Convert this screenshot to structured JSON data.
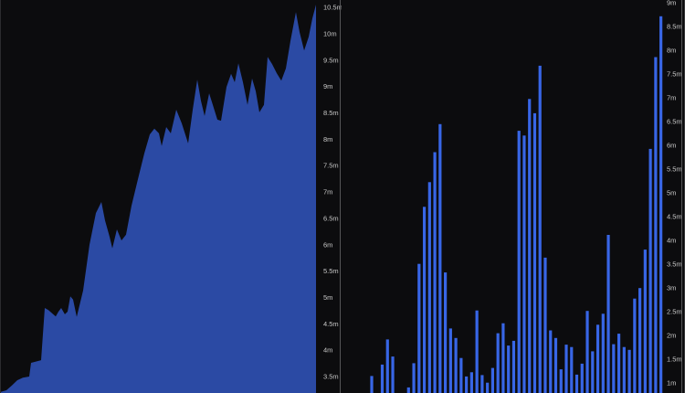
{
  "page": {
    "background": "#0c0c0e",
    "panel_border_color": "#565658"
  },
  "chart_data": [
    {
      "type": "area",
      "name": "area-chart",
      "title": "",
      "xlabel": "",
      "ylabel": "",
      "unit": "m",
      "legend": "none",
      "grid": "off",
      "y_axis_side": "right",
      "y_ticks": [
        {
          "label": "10.5m",
          "value": 10.5
        },
        {
          "label": "10m",
          "value": 10.0
        },
        {
          "label": "9.5m",
          "value": 9.5
        },
        {
          "label": "9m",
          "value": 9.0
        },
        {
          "label": "8.5m",
          "value": 8.5
        },
        {
          "label": "8m",
          "value": 8.0
        },
        {
          "label": "7.5m",
          "value": 7.5
        },
        {
          "label": "7m",
          "value": 7.0
        },
        {
          "label": "6.5m",
          "value": 6.5
        },
        {
          "label": "6m",
          "value": 6.0
        },
        {
          "label": "5.5m",
          "value": 5.5
        },
        {
          "label": "5m",
          "value": 5.0
        },
        {
          "label": "4.5m",
          "value": 4.5
        },
        {
          "label": "4m",
          "value": 4.0
        },
        {
          "label": "3.5m",
          "value": 3.5
        }
      ],
      "visible_value_range": [
        3.19,
        10.55
      ],
      "points": [
        [
          0,
          3.21
        ],
        [
          6,
          3.24
        ],
        [
          12,
          3.33
        ],
        [
          18,
          3.43
        ],
        [
          24,
          3.48
        ],
        [
          31,
          3.5
        ],
        [
          33,
          3.76
        ],
        [
          44,
          3.81
        ],
        [
          48,
          4.8
        ],
        [
          52,
          4.76
        ],
        [
          56,
          4.7
        ],
        [
          60,
          4.64
        ],
        [
          63,
          4.73
        ],
        [
          66,
          4.8
        ],
        [
          70,
          4.68
        ],
        [
          73,
          4.73
        ],
        [
          76,
          5.02
        ],
        [
          79,
          4.96
        ],
        [
          83,
          4.63
        ],
        [
          90,
          5.13
        ],
        [
          97,
          6.0
        ],
        [
          104,
          6.6
        ],
        [
          110,
          6.81
        ],
        [
          114,
          6.46
        ],
        [
          119,
          6.15
        ],
        [
          122,
          5.93
        ],
        [
          127,
          6.29
        ],
        [
          132,
          6.08
        ],
        [
          137,
          6.19
        ],
        [
          143,
          6.74
        ],
        [
          150,
          7.24
        ],
        [
          157,
          7.73
        ],
        [
          163,
          8.09
        ],
        [
          168,
          8.2
        ],
        [
          173,
          8.11
        ],
        [
          176,
          7.87
        ],
        [
          181,
          8.23
        ],
        [
          186,
          8.11
        ],
        [
          192,
          8.56
        ],
        [
          198,
          8.3
        ],
        [
          205,
          7.92
        ],
        [
          210,
          8.56
        ],
        [
          215,
          9.13
        ],
        [
          219,
          8.73
        ],
        [
          223,
          8.44
        ],
        [
          228,
          8.87
        ],
        [
          232,
          8.65
        ],
        [
          237,
          8.37
        ],
        [
          241,
          8.35
        ],
        [
          247,
          8.99
        ],
        [
          252,
          9.24
        ],
        [
          256,
          9.08
        ],
        [
          260,
          9.44
        ],
        [
          265,
          9.08
        ],
        [
          270,
          8.65
        ],
        [
          275,
          9.15
        ],
        [
          279,
          8.91
        ],
        [
          283,
          8.51
        ],
        [
          288,
          8.65
        ],
        [
          292,
          9.56
        ],
        [
          297,
          9.42
        ],
        [
          302,
          9.25
        ],
        [
          307,
          9.11
        ],
        [
          312,
          9.34
        ],
        [
          317,
          9.86
        ],
        [
          323,
          10.41
        ],
        [
          327,
          10.03
        ],
        [
          332,
          9.68
        ],
        [
          337,
          9.94
        ],
        [
          341,
          10.29
        ],
        [
          345,
          10.55
        ]
      ],
      "colors": {
        "fill": "#2b4aa4",
        "background": "#0c0c0e",
        "tick_text": "#c9c9c9"
      }
    },
    {
      "type": "bar",
      "name": "bar-chart",
      "title": "",
      "xlabel": "",
      "ylabel": "",
      "unit": "m",
      "legend": "none",
      "grid": "off",
      "y_axis_side": "right",
      "y_ticks": [
        {
          "label": "9m",
          "value": 9.0
        },
        {
          "label": "8.5m",
          "value": 8.5
        },
        {
          "label": "8m",
          "value": 8.0
        },
        {
          "label": "7.5m",
          "value": 7.5
        },
        {
          "label": "7m",
          "value": 7.0
        },
        {
          "label": "6.5m",
          "value": 6.5
        },
        {
          "label": "6m",
          "value": 6.0
        },
        {
          "label": "5.5m",
          "value": 5.5
        },
        {
          "label": "5m",
          "value": 5.0
        },
        {
          "label": "4.5m",
          "value": 4.5
        },
        {
          "label": "4m",
          "value": 4.0
        },
        {
          "label": "3.5m",
          "value": 3.5
        },
        {
          "label": "3m",
          "value": 3.0
        },
        {
          "label": "2.5m",
          "value": 2.5
        },
        {
          "label": "2m",
          "value": 2.0
        },
        {
          "label": "1.5m",
          "value": 1.5
        },
        {
          "label": "1m",
          "value": 1.0
        }
      ],
      "visible_value_range": [
        0.79,
        9.0
      ],
      "values": [
        1.14,
        null,
        1.38,
        1.91,
        1.55,
        null,
        null,
        0.9,
        1.41,
        3.5,
        4.7,
        5.22,
        5.85,
        6.44,
        3.32,
        2.14,
        1.94,
        1.52,
        1.13,
        1.22,
        2.52,
        1.16,
        1.0,
        1.31,
        2.04,
        2.25,
        1.78,
        1.88,
        6.3,
        6.2,
        6.97,
        6.67,
        7.67,
        3.63,
        2.1,
        1.94,
        1.28,
        1.8,
        1.75,
        1.17,
        1.4,
        2.51,
        1.66,
        2.22,
        2.45,
        4.11,
        1.81,
        2.03,
        1.75,
        1.69,
        2.77,
        2.99,
        3.8,
        5.92,
        7.85,
        8.71
      ],
      "colors": {
        "bar": "#3866e6",
        "background": "#0c0c0e",
        "tick_text": "#c9c9c9"
      }
    }
  ]
}
